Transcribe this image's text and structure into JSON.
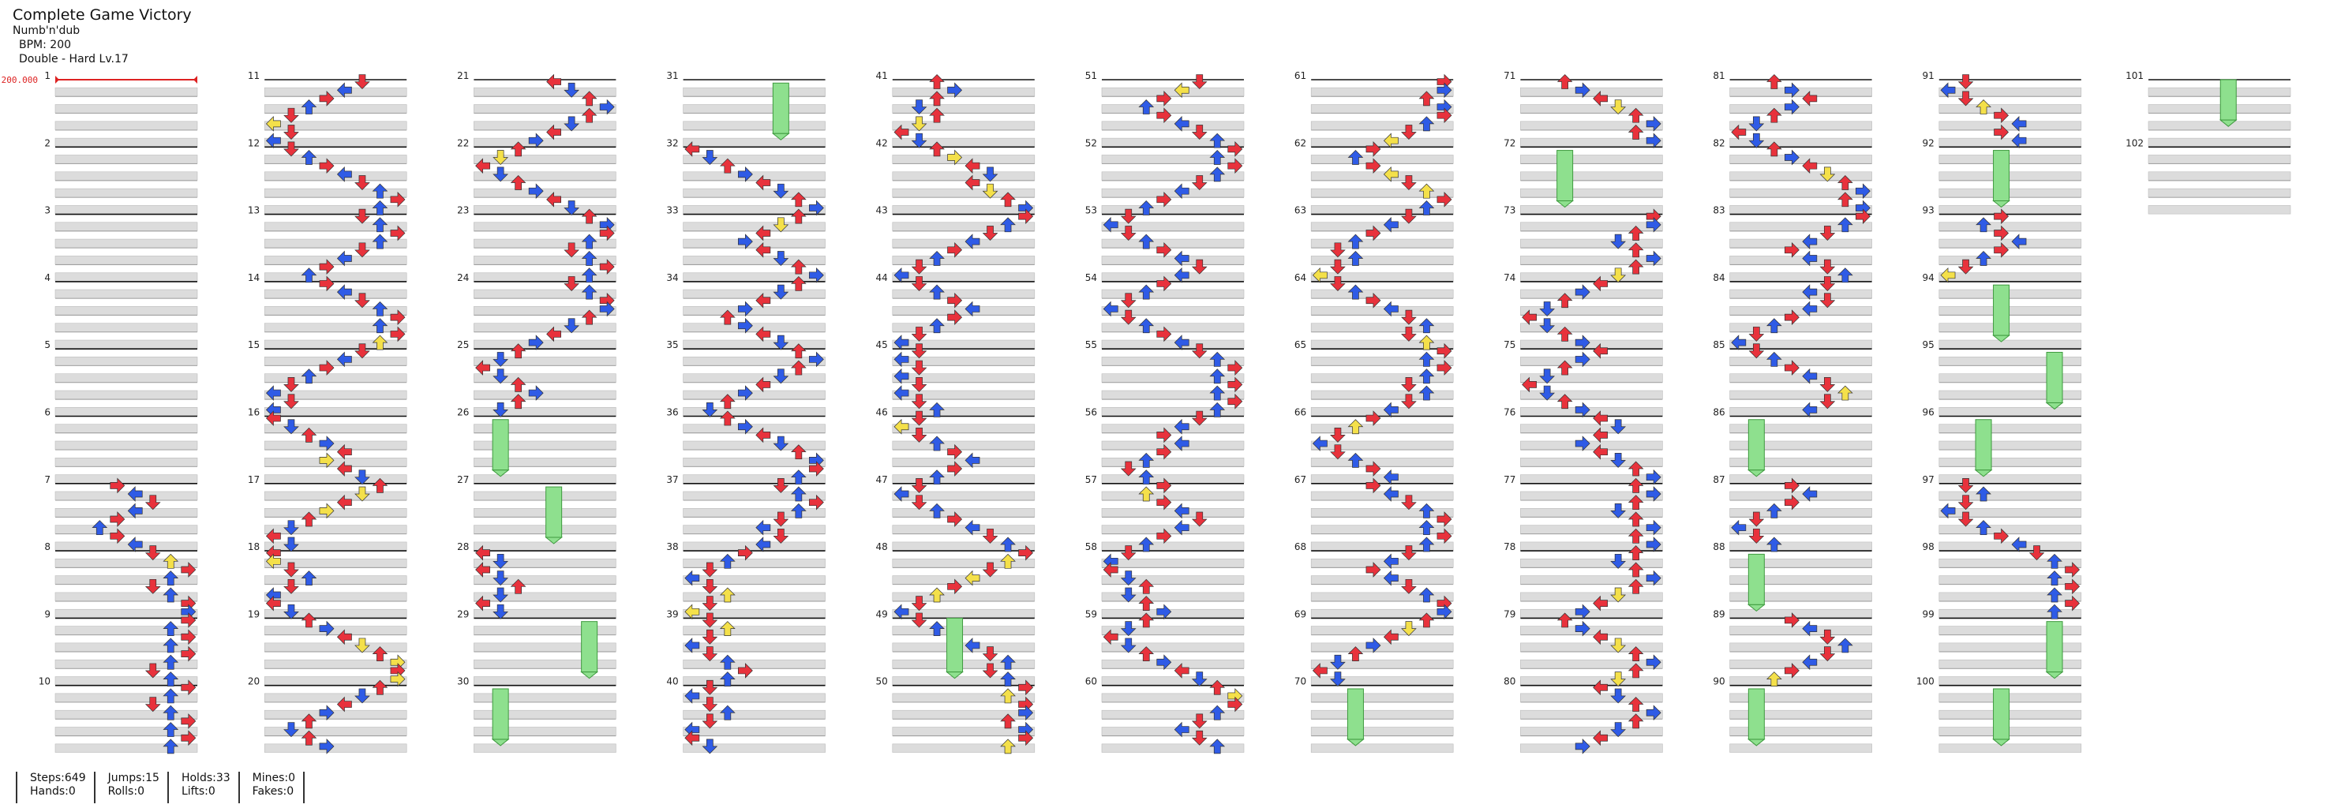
{
  "song": {
    "title": "Complete Game Victory",
    "artist": "Numb'n'dub",
    "bpm_label": "BPM: 200",
    "difficulty": "Double - Hard Lv.17"
  },
  "bpm_marker": "200.000",
  "stats": [
    {
      "lines": [
        "Steps:649",
        "Hands:0"
      ]
    },
    {
      "lines": [
        "Jumps:15",
        "Rolls:0"
      ]
    },
    {
      "lines": [
        "Holds:33",
        "Lifts:0"
      ]
    },
    {
      "lines": [
        "Mines:0",
        "Fakes:0"
      ]
    }
  ],
  "chart_data": {
    "type": "step-chart",
    "mode": "Double",
    "lanes": 8,
    "total_measures": 102,
    "measures_per_column": 10,
    "colors": {
      "quarter": "#e8323c",
      "eighth": "#2f5be6",
      "sixteenth": "#f4e04a",
      "hold": "#8ee08e",
      "hold_border": "#3f9a3f",
      "band": "#dcdcdc",
      "measure_line": "#111111",
      "bpm_line": "#dd2222"
    }
  }
}
